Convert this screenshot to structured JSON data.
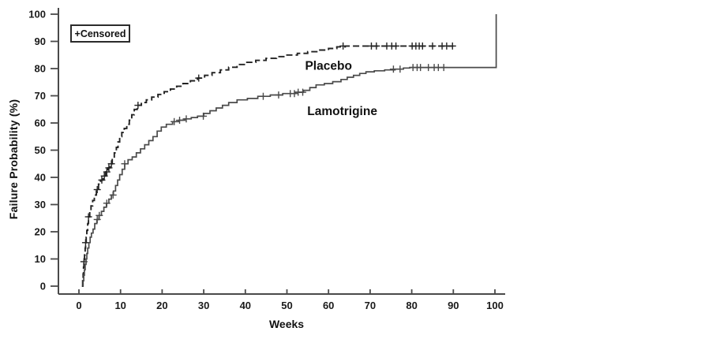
{
  "chart_data": {
    "type": "line",
    "chart_kind": "kaplan-meier-step",
    "title": "",
    "xlabel": "Weeks",
    "ylabel": "Failure Probability (%)",
    "legend_label": "+Censored",
    "legend_position": "top-left",
    "grid": false,
    "xlim": [
      0,
      100
    ],
    "ylim": [
      0,
      100
    ],
    "xticks": [
      0,
      10,
      20,
      30,
      40,
      50,
      60,
      70,
      80,
      90,
      100
    ],
    "yticks": [
      0,
      10,
      20,
      30,
      40,
      50,
      60,
      70,
      80,
      90,
      100
    ],
    "axis_color": "#4a4a4a",
    "tick_label_color": "#1a1a1a",
    "series": [
      {
        "name": "Placebo",
        "line_style": "dashed",
        "color": "#222222",
        "label_week": 60,
        "label_pct": 81,
        "steps": [
          [
            0.7,
            0
          ],
          [
            0.9,
            2
          ],
          [
            1.0,
            4.5
          ],
          [
            1.1,
            7
          ],
          [
            1.2,
            9
          ],
          [
            1.35,
            11.5
          ],
          [
            1.5,
            14
          ],
          [
            1.6,
            16
          ],
          [
            1.75,
            18
          ],
          [
            1.9,
            20.5
          ],
          [
            2.1,
            23
          ],
          [
            2.3,
            25.5
          ],
          [
            2.6,
            27.5
          ],
          [
            2.9,
            29.5
          ],
          [
            3.3,
            31.5
          ],
          [
            3.7,
            33.5
          ],
          [
            4.2,
            35.5
          ],
          [
            4.7,
            37.5
          ],
          [
            5.2,
            39
          ],
          [
            5.8,
            40.5
          ],
          [
            6.4,
            42
          ],
          [
            7.0,
            43.5
          ],
          [
            7.5,
            45
          ],
          [
            8.0,
            47
          ],
          [
            8.5,
            49
          ],
          [
            9.0,
            51
          ],
          [
            9.4,
            53
          ],
          [
            9.8,
            55
          ],
          [
            10.3,
            56.5
          ],
          [
            10.9,
            58
          ],
          [
            11.5,
            59.5
          ],
          [
            12.1,
            61
          ],
          [
            12.7,
            63
          ],
          [
            13.3,
            65
          ],
          [
            14.0,
            66.5
          ],
          [
            15.0,
            67.5
          ],
          [
            16.2,
            68.5
          ],
          [
            17.5,
            69.5
          ],
          [
            19.0,
            70.5
          ],
          [
            20.5,
            71.5
          ],
          [
            22.0,
            72.5
          ],
          [
            23.5,
            73.5
          ],
          [
            25.0,
            74.5
          ],
          [
            26.8,
            75.5
          ],
          [
            28.5,
            76.5
          ],
          [
            30.2,
            77.5
          ],
          [
            32.0,
            78.5
          ],
          [
            34.0,
            79.5
          ],
          [
            36.0,
            80.5
          ],
          [
            38.0,
            81.5
          ],
          [
            40.0,
            82.3
          ],
          [
            42.5,
            83
          ],
          [
            45.0,
            83.8
          ],
          [
            47.5,
            84.4
          ],
          [
            50.0,
            85
          ],
          [
            52.5,
            85.6
          ],
          [
            55.0,
            86.2
          ],
          [
            57.5,
            86.8
          ],
          [
            60.0,
            87.4
          ],
          [
            62.0,
            88
          ],
          [
            64.0,
            88.3
          ],
          [
            90.0,
            88.3
          ]
        ],
        "censored": [
          [
            1.2,
            9
          ],
          [
            1.6,
            16
          ],
          [
            2.3,
            25.5
          ],
          [
            4.4,
            35.5
          ],
          [
            5.5,
            39
          ],
          [
            6.1,
            40.5
          ],
          [
            6.7,
            42
          ],
          [
            7.2,
            43.5
          ],
          [
            7.8,
            45
          ],
          [
            14.2,
            66.5
          ],
          [
            28.8,
            76.5
          ],
          [
            63.5,
            88.3
          ],
          [
            70.3,
            88.3
          ],
          [
            71.5,
            88.3
          ],
          [
            74.0,
            88.3
          ],
          [
            75.2,
            88.3
          ],
          [
            76.2,
            88.3
          ],
          [
            80.1,
            88.3
          ],
          [
            81.0,
            88.3
          ],
          [
            81.8,
            88.3
          ],
          [
            82.6,
            88.3
          ],
          [
            85.0,
            88.3
          ],
          [
            87.3,
            88.3
          ],
          [
            88.4,
            88.3
          ],
          [
            89.8,
            88.3
          ]
        ]
      },
      {
        "name": "Lamotrigine",
        "line_style": "solid",
        "color": "#4a4a4a",
        "label_week": 63.3,
        "label_pct": 64.3,
        "steps": [
          [
            0.9,
            0
          ],
          [
            1.0,
            2
          ],
          [
            1.15,
            4
          ],
          [
            1.3,
            6
          ],
          [
            1.5,
            8
          ],
          [
            1.7,
            10
          ],
          [
            1.9,
            12
          ],
          [
            2.1,
            14
          ],
          [
            2.4,
            16
          ],
          [
            2.7,
            18
          ],
          [
            3.0,
            19.5
          ],
          [
            3.4,
            21
          ],
          [
            3.8,
            23
          ],
          [
            4.3,
            24.5
          ],
          [
            4.8,
            26
          ],
          [
            5.4,
            27.5
          ],
          [
            6.0,
            29
          ],
          [
            6.6,
            30.5
          ],
          [
            7.2,
            32
          ],
          [
            7.8,
            33.5
          ],
          [
            8.3,
            35
          ],
          [
            8.8,
            37
          ],
          [
            9.3,
            39
          ],
          [
            9.8,
            41
          ],
          [
            10.4,
            43
          ],
          [
            11.0,
            45
          ],
          [
            11.8,
            46.5
          ],
          [
            12.8,
            47.5
          ],
          [
            13.8,
            49
          ],
          [
            14.8,
            50.5
          ],
          [
            15.8,
            52
          ],
          [
            16.8,
            53.5
          ],
          [
            17.8,
            55
          ],
          [
            18.8,
            57
          ],
          [
            19.8,
            58.5
          ],
          [
            21.0,
            59.5
          ],
          [
            22.5,
            60.5
          ],
          [
            24.0,
            61
          ],
          [
            25.5,
            61.5
          ],
          [
            27.0,
            62
          ],
          [
            28.5,
            62.5
          ],
          [
            30.0,
            63.5
          ],
          [
            31.5,
            64.5
          ],
          [
            33.0,
            65.5
          ],
          [
            34.5,
            66.5
          ],
          [
            36.0,
            67.5
          ],
          [
            38.0,
            68.5
          ],
          [
            40.5,
            69
          ],
          [
            43.0,
            69.8
          ],
          [
            46.0,
            70.3
          ],
          [
            49.0,
            70.8
          ],
          [
            52.0,
            71.3
          ],
          [
            54.0,
            72
          ],
          [
            55.5,
            73
          ],
          [
            57.0,
            74
          ],
          [
            59.0,
            74.5
          ],
          [
            61.0,
            75.2
          ],
          [
            63.0,
            76
          ],
          [
            64.5,
            76.8
          ],
          [
            66.0,
            77.5
          ],
          [
            67.5,
            78.2
          ],
          [
            69.0,
            78.8
          ],
          [
            71.0,
            79.2
          ],
          [
            73.5,
            79.5
          ],
          [
            76.0,
            79.8
          ],
          [
            78.0,
            80.2
          ],
          [
            79.5,
            80.4
          ],
          [
            100.3,
            80.4
          ],
          [
            100.3,
            100
          ]
        ],
        "censored": [
          [
            4.4,
            24.5
          ],
          [
            4.9,
            26
          ],
          [
            6.7,
            30.5
          ],
          [
            8.2,
            33.5
          ],
          [
            11.0,
            45
          ],
          [
            22.9,
            60.5
          ],
          [
            24.2,
            61
          ],
          [
            25.8,
            61.5
          ],
          [
            29.9,
            62.5
          ],
          [
            44.3,
            69.8
          ],
          [
            48.0,
            70.3
          ],
          [
            50.8,
            70.8
          ],
          [
            51.8,
            70.8
          ],
          [
            52.7,
            71.3
          ],
          [
            53.8,
            71.3
          ],
          [
            75.6,
            79.8
          ],
          [
            77.2,
            79.8
          ],
          [
            80.3,
            80.4
          ],
          [
            81.3,
            80.4
          ],
          [
            82.1,
            80.4
          ],
          [
            84.0,
            80.4
          ],
          [
            85.4,
            80.4
          ],
          [
            86.4,
            80.4
          ],
          [
            87.7,
            80.4
          ]
        ]
      }
    ]
  }
}
